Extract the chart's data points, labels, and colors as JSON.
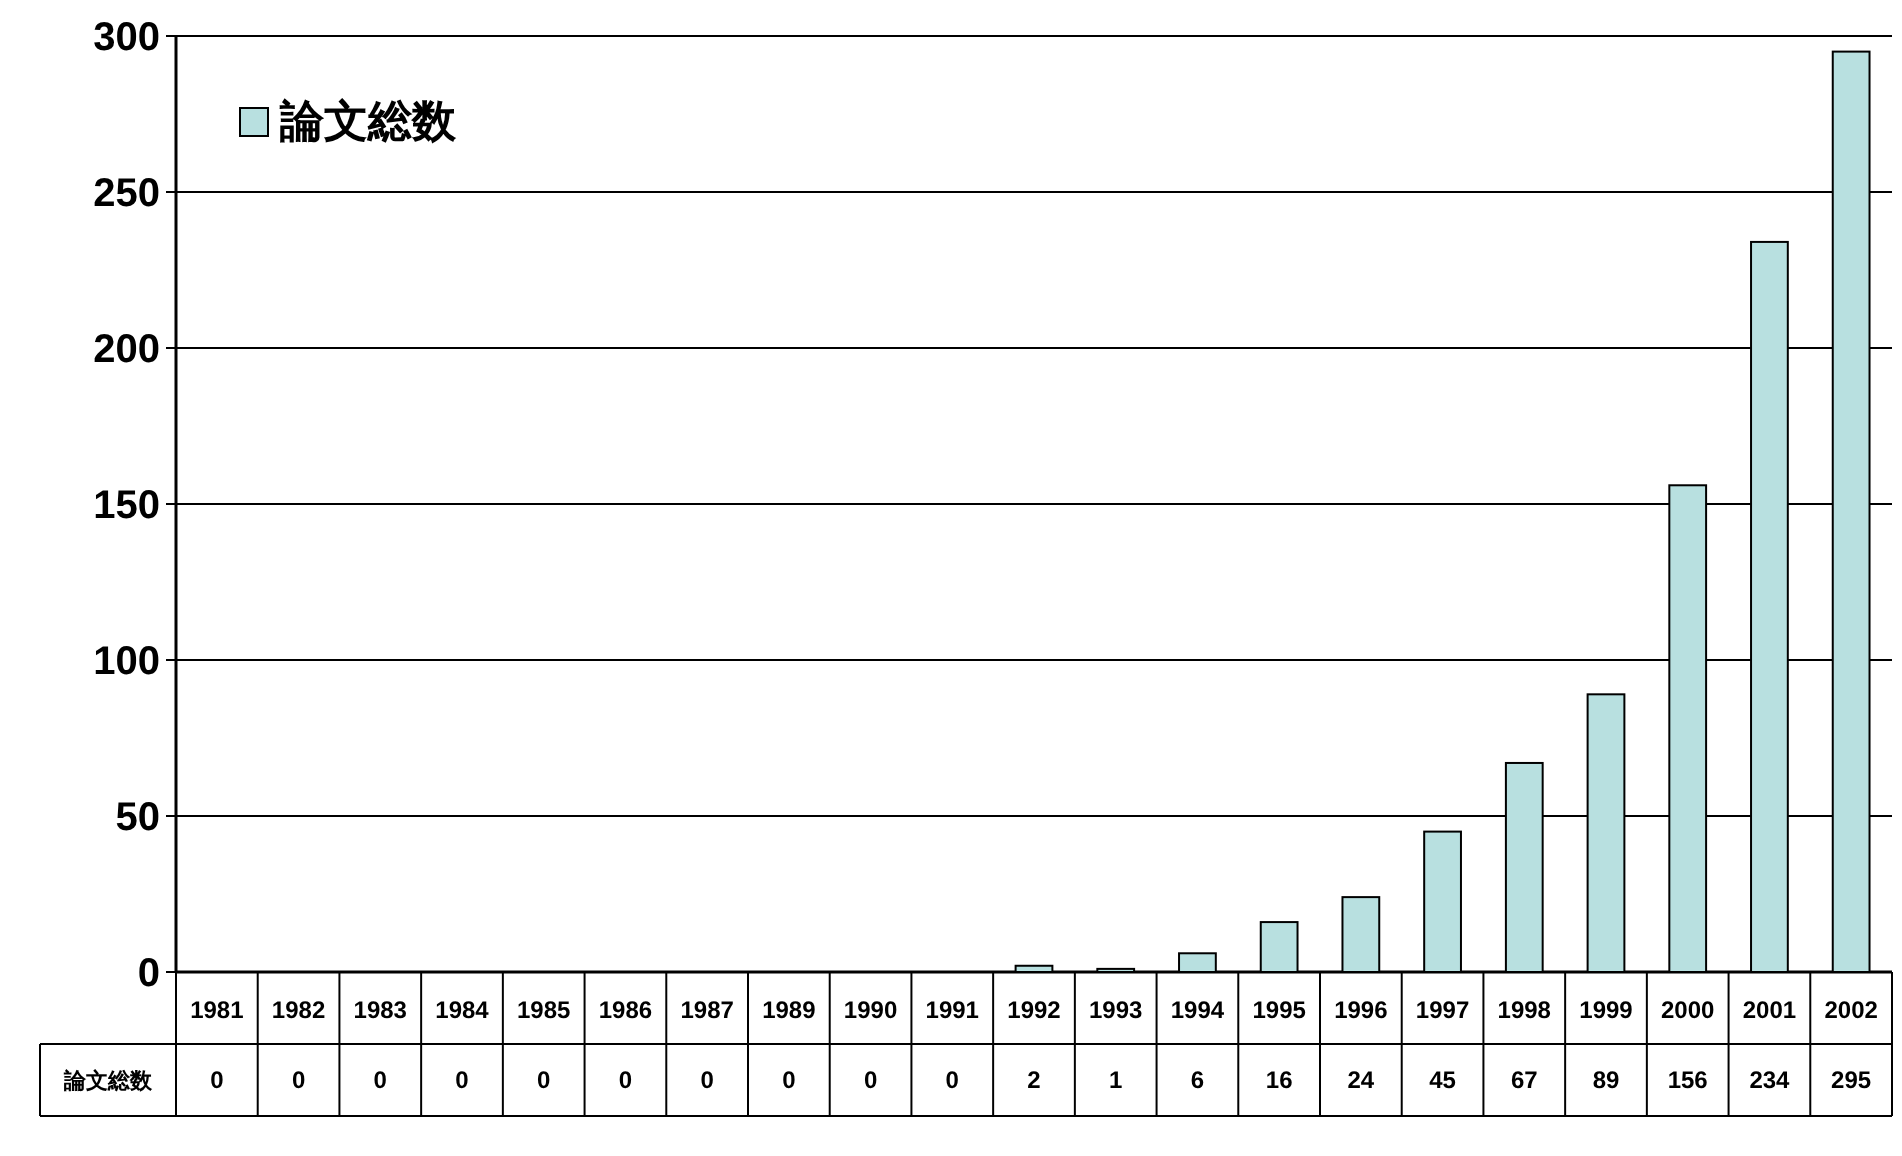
{
  "chart_data": {
    "type": "bar",
    "categories": [
      "1981",
      "1982",
      "1983",
      "1984",
      "1985",
      "1986",
      "1987",
      "1989",
      "1990",
      "1991",
      "1992",
      "1993",
      "1994",
      "1995",
      "1996",
      "1997",
      "1998",
      "1999",
      "2000",
      "2001",
      "2002"
    ],
    "series": [
      {
        "name": "論文総数",
        "color": "#b8e0e0",
        "values": [
          0,
          0,
          0,
          0,
          0,
          0,
          0,
          0,
          0,
          0,
          2,
          1,
          6,
          16,
          24,
          45,
          67,
          89,
          156,
          234,
          295
        ]
      }
    ],
    "ylim": [
      0,
      300
    ],
    "yticks": [
      0,
      50,
      100,
      150,
      200,
      250,
      300
    ],
    "grid": "y",
    "legend": "top left",
    "data_labels": true
  }
}
